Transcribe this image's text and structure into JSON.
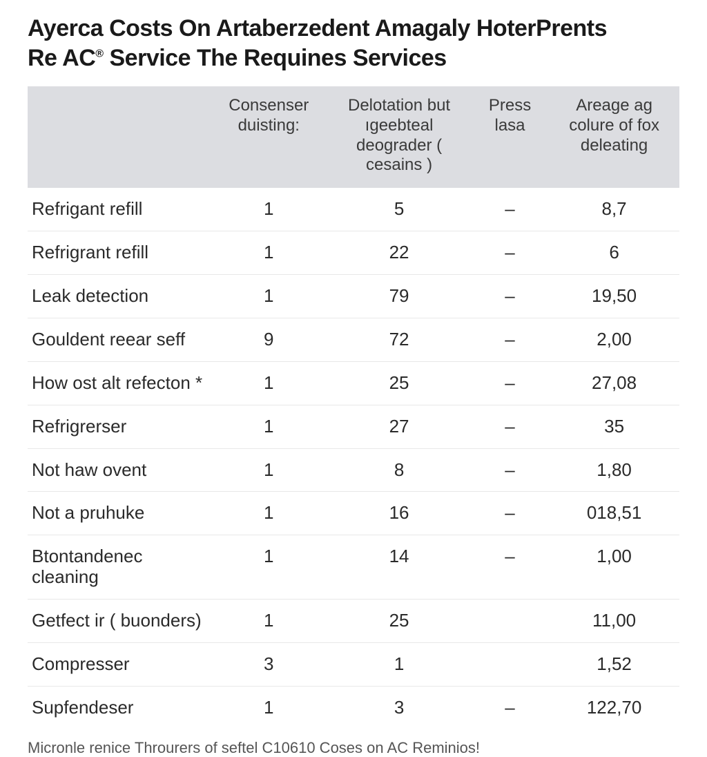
{
  "title_line1": "Ayerca Costs On Artaberzedent Amagaly HoterPrents",
  "title_line2_pre": "Re AC",
  "title_line2_sup": "®",
  "title_line2_post": " Service The Requines Services",
  "table": {
    "type": "table",
    "header_bg": "#dcdde1",
    "row_border_color": "#e8e8e8",
    "header_fontsize": 24,
    "cell_fontsize": 26,
    "text_color": "#2a2a2a",
    "columns": [
      {
        "label": "",
        "align": "left",
        "width_pct": 28
      },
      {
        "label": "Consenser duisting:",
        "align": "center",
        "width_pct": 18
      },
      {
        "label": "Delotation but ıgeebteal deograder ( cesains )",
        "align": "center",
        "width_pct": 22
      },
      {
        "label": "Press lasa",
        "align": "center",
        "width_pct": 12
      },
      {
        "label": "Areage ag colure of fox deleating",
        "align": "center",
        "width_pct": 20
      }
    ],
    "rows": [
      {
        "c0": "Refrigant refill",
        "c1": "1",
        "c2": "5",
        "c3": "–",
        "c4": "8,7"
      },
      {
        "c0": "Refrigrant refill",
        "c1": "1",
        "c2": "22",
        "c3": "–",
        "c4": "6"
      },
      {
        "c0": "Leak detection",
        "c1": "1",
        "c2": "79",
        "c3": "–",
        "c4": "19,50"
      },
      {
        "c0": "Gouldent reear seff",
        "c1": "9",
        "c2": "72",
        "c3": "–",
        "c4": "2,00"
      },
      {
        "c0": "How ost alt refecton *",
        "c1": "1",
        "c2": "25",
        "c3": "–",
        "c4": "27,08"
      },
      {
        "c0": "Refrigrerser",
        "c1": "1",
        "c2": "27",
        "c3": "–",
        "c4": "35"
      },
      {
        "c0": "Not haw ovent",
        "c1": "1",
        "c2": "8",
        "c3": "–",
        "c4": "1,80"
      },
      {
        "c0": "Not a pruhuke",
        "c1": "1",
        "c2": "16",
        "c3": "–",
        "c4": "018,51"
      },
      {
        "c0": "Btontandenec cleaning",
        "c1": "1",
        "c2": "14",
        "c3": "–",
        "c4": "1,00"
      },
      {
        "c0": "Getfect ir ( buonders)",
        "c1": "1",
        "c2": "25",
        "c3": "",
        "c4": "11,00"
      },
      {
        "c0": "Compresser",
        "c1": "3",
        "c2": "1",
        "c3": "",
        "c4": "1,52"
      },
      {
        "c0": "Supfendeser",
        "c1": "1",
        "c2": "3",
        "c3": "–",
        "c4": "122,70"
      }
    ]
  },
  "footnote": "Micronle renice   Throurers of seftel C10610 Coses on AC Reminios!"
}
